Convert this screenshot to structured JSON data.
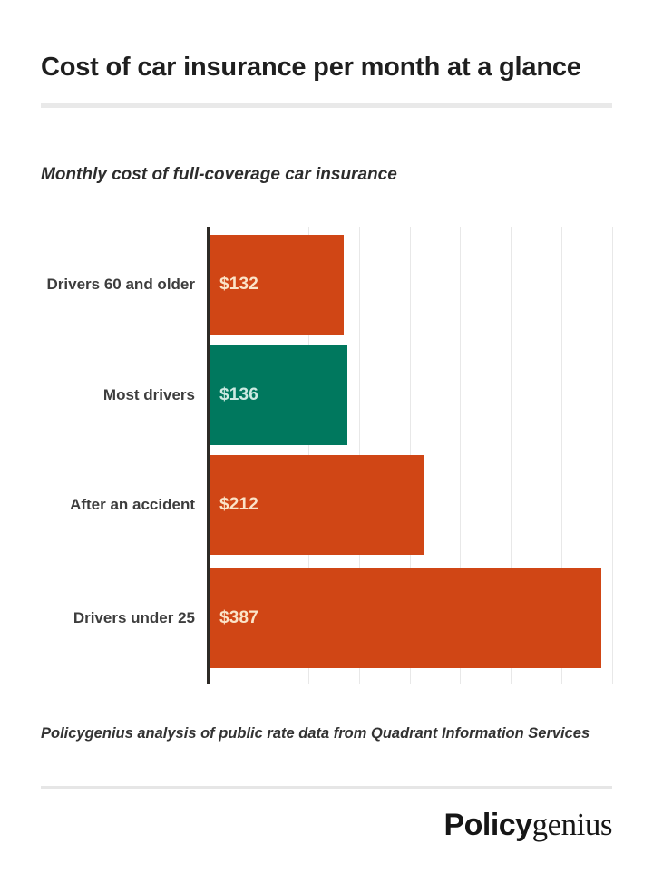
{
  "page": {
    "background": "#ffffff"
  },
  "header": {
    "title": "Cost of car insurance per month at a glance"
  },
  "chart_data": {
    "type": "bar",
    "orientation": "horizontal",
    "title": "Monthly cost of full-coverage car insurance",
    "categories": [
      "Drivers 60 and older",
      "Most drivers",
      "After an accident",
      "Drivers under 25"
    ],
    "values": [
      132,
      136,
      212,
      387
    ],
    "value_labels": [
      "$132",
      "$136",
      "$212",
      "$387"
    ],
    "bar_colors": [
      "#d04615",
      "#00785e",
      "#d04615",
      "#d04615"
    ],
    "value_label_colors": [
      "#fbe4c8",
      "#cdeae2",
      "#fbe4c8",
      "#fbe4c8"
    ],
    "xlabel": "",
    "ylabel": "",
    "xlim": [
      0,
      400
    ],
    "gridline_step": 50,
    "grid": true,
    "tick_labels_shown": false,
    "axis_color": "#2d2a26",
    "gridline_color": "#e8e8e8"
  },
  "footer": {
    "source_note": "Policygenius analysis of public rate data from Quadrant Information Services",
    "logo": {
      "bold_part": "Policy",
      "serif_part": "genius"
    }
  }
}
